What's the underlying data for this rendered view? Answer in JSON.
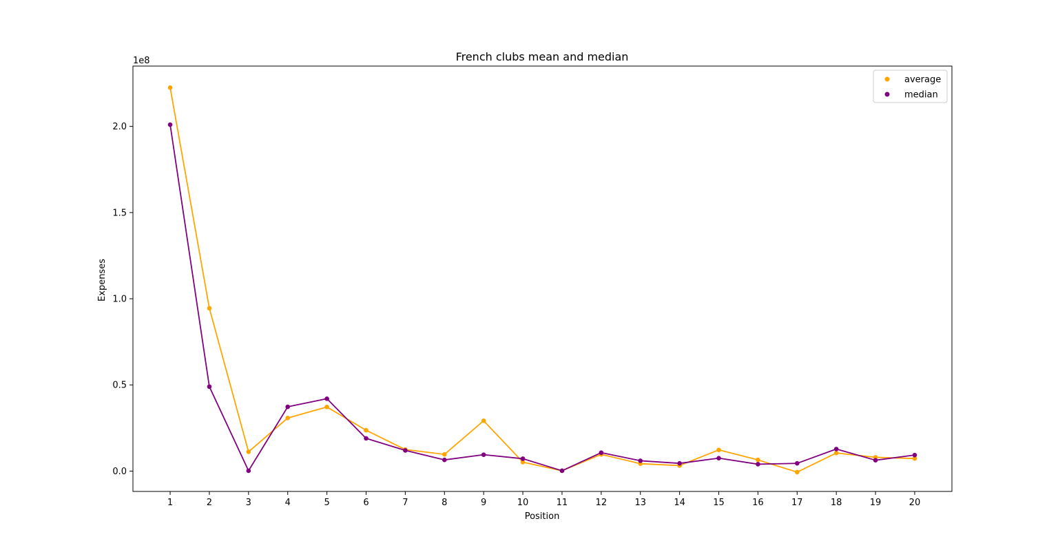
{
  "chart_data": {
    "type": "line",
    "title": "French clubs mean and median",
    "xlabel": "Position",
    "ylabel": "Expenses",
    "y_scale_label": "1e8",
    "x": [
      1,
      2,
      3,
      4,
      5,
      6,
      7,
      8,
      9,
      10,
      11,
      12,
      13,
      14,
      15,
      16,
      17,
      18,
      19,
      20
    ],
    "x_ticks": [
      "1",
      "2",
      "3",
      "4",
      "5",
      "6",
      "7",
      "8",
      "9",
      "10",
      "11",
      "12",
      "13",
      "14",
      "15",
      "16",
      "17",
      "18",
      "19",
      "20"
    ],
    "y_ticks": [
      0.0,
      0.5,
      1.0,
      1.5,
      2.0
    ],
    "y_tick_labels": [
      "0.0",
      "0.5",
      "1.0",
      "1.5",
      "2.0"
    ],
    "xlim": [
      0.05,
      20.95
    ],
    "ylim": [
      -0.118,
      2.35
    ],
    "grid": false,
    "legend_position": "top-right",
    "series": [
      {
        "name": "average",
        "color": "#ffa500",
        "values": [
          2.225,
          0.945,
          0.112,
          0.308,
          0.372,
          0.237,
          0.125,
          0.097,
          0.292,
          0.052,
          0.002,
          0.097,
          0.043,
          0.032,
          0.123,
          0.065,
          -0.006,
          0.105,
          0.08,
          0.073
        ]
      },
      {
        "name": "median",
        "color": "#800080",
        "values": [
          2.01,
          0.49,
          0.002,
          0.373,
          0.42,
          0.19,
          0.12,
          0.065,
          0.095,
          0.072,
          0.002,
          0.107,
          0.06,
          0.045,
          0.075,
          0.04,
          0.045,
          0.128,
          0.063,
          0.093
        ]
      }
    ]
  }
}
